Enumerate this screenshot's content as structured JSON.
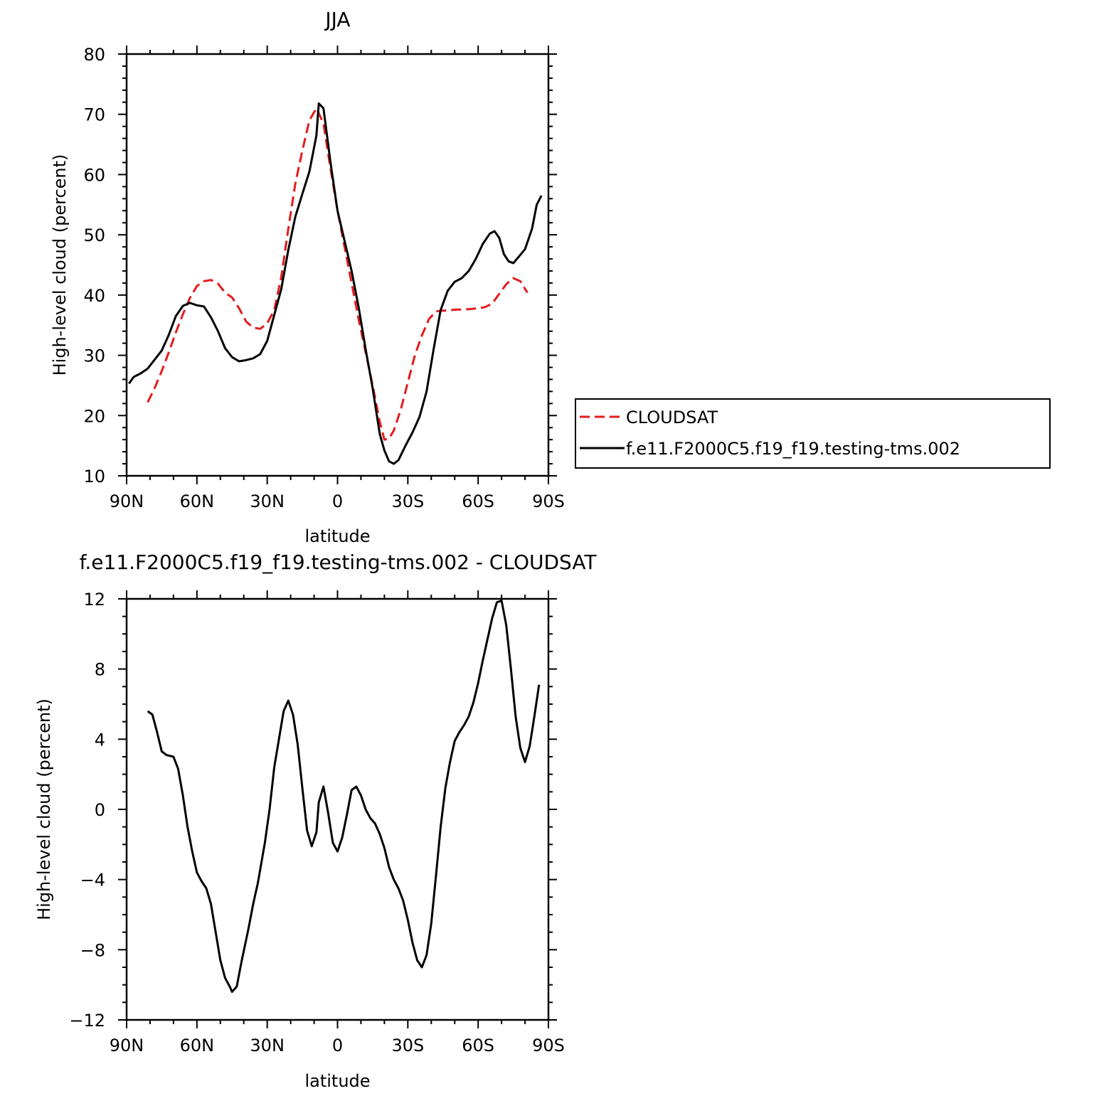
{
  "chart_data": [
    {
      "type": "line",
      "title": "JJA",
      "xlabel": "latitude",
      "ylabel": "High-level cloud (percent)",
      "ylim": [
        10,
        80
      ],
      "xlim": [
        -90,
        90
      ],
      "x_axis_direction": "north-to-south",
      "x_ticks": [
        "90N",
        "60N",
        "30N",
        "0",
        "30S",
        "60S",
        "90S"
      ],
      "y_ticks": [
        "10",
        "20",
        "30",
        "40",
        "50",
        "60",
        "70",
        "80"
      ],
      "legend_position": "right, outside plot",
      "series": [
        {
          "name": "CLOUDSAT",
          "color": "#e41a1c",
          "dash": "dashed",
          "points": [
            [
              -81,
              22.2
            ],
            [
              -78,
              24.6
            ],
            [
              -75,
              27.4
            ],
            [
              -72,
              30.5
            ],
            [
              -69,
              33.8
            ],
            [
              -66,
              36.8
            ],
            [
              -63,
              39.5
            ],
            [
              -60,
              41.5
            ],
            [
              -57,
              42.3
            ],
            [
              -54,
              42.5
            ],
            [
              -51,
              41.9
            ],
            [
              -48,
              40.4
            ],
            [
              -45,
              39.6
            ],
            [
              -42,
              37.8
            ],
            [
              -39,
              35.6
            ],
            [
              -36,
              34.6
            ],
            [
              -33,
              34.4
            ],
            [
              -30,
              35.3
            ],
            [
              -27,
              37.5
            ],
            [
              -24,
              43.0
            ],
            [
              -21,
              51.0
            ],
            [
              -18,
              58.5
            ],
            [
              -15,
              64.0
            ],
            [
              -12,
              69.0
            ],
            [
              -9,
              71.0
            ],
            [
              -6,
              68.5
            ],
            [
              -3,
              61.0
            ],
            [
              0,
              54.0
            ],
            [
              3,
              48.0
            ],
            [
              6,
              42.0
            ],
            [
              9,
              36.0
            ],
            [
              12,
              30.5
            ],
            [
              15,
              25.0
            ],
            [
              18,
              19.0
            ],
            [
              20,
              16.0
            ],
            [
              22,
              16.2
            ],
            [
              24,
              17.5
            ],
            [
              27,
              21.0
            ],
            [
              30,
              25.5
            ],
            [
              33,
              30.0
            ],
            [
              36,
              33.3
            ],
            [
              39,
              36.0
            ],
            [
              42,
              37.3
            ],
            [
              45,
              37.4
            ],
            [
              48,
              37.5
            ],
            [
              51,
              37.6
            ],
            [
              54,
              37.6
            ],
            [
              57,
              37.7
            ],
            [
              60,
              37.8
            ],
            [
              63,
              38.0
            ],
            [
              66,
              38.6
            ],
            [
              69,
              40.2
            ],
            [
              72,
              41.8
            ],
            [
              75,
              42.8
            ],
            [
              78,
              42.3
            ],
            [
              81,
              40.4
            ]
          ]
        },
        {
          "name": "f.e11.F2000C5.f19_f19.testing-tms.002",
          "color": "#000000",
          "dash": "solid",
          "points": [
            [
              -89,
              25.3
            ],
            [
              -87,
              26.4
            ],
            [
              -84,
              27.0
            ],
            [
              -81,
              27.8
            ],
            [
              -78,
              29.3
            ],
            [
              -75,
              30.8
            ],
            [
              -72,
              33.4
            ],
            [
              -69,
              36.5
            ],
            [
              -66,
              38.2
            ],
            [
              -63,
              38.7
            ],
            [
              -60,
              38.3
            ],
            [
              -57,
              38.1
            ],
            [
              -54,
              36.3
            ],
            [
              -51,
              34.0
            ],
            [
              -48,
              31.2
            ],
            [
              -45,
              29.7
            ],
            [
              -42,
              29.0
            ],
            [
              -39,
              29.2
            ],
            [
              -36,
              29.5
            ],
            [
              -33,
              30.2
            ],
            [
              -30,
              32.4
            ],
            [
              -27,
              36.7
            ],
            [
              -24,
              41.0
            ],
            [
              -21,
              47.5
            ],
            [
              -18,
              53.0
            ],
            [
              -15,
              56.8
            ],
            [
              -12,
              60.5
            ],
            [
              -9,
              66.5
            ],
            [
              -8,
              71.8
            ],
            [
              -6,
              71.0
            ],
            [
              -3,
              62.0
            ],
            [
              0,
              54.0
            ],
            [
              3,
              49.0
            ],
            [
              6,
              44.0
            ],
            [
              9,
              38.0
            ],
            [
              12,
              31.0
            ],
            [
              15,
              24.5
            ],
            [
              18,
              17.0
            ],
            [
              20,
              14.2
            ],
            [
              22,
              12.4
            ],
            [
              24,
              12.0
            ],
            [
              26,
              12.6
            ],
            [
              29,
              15.0
            ],
            [
              32,
              17.2
            ],
            [
              35,
              19.8
            ],
            [
              38,
              24.0
            ],
            [
              41,
              31.0
            ],
            [
              44,
              37.5
            ],
            [
              47,
              40.7
            ],
            [
              50,
              42.2
            ],
            [
              53,
              42.8
            ],
            [
              56,
              44.0
            ],
            [
              59,
              46.0
            ],
            [
              62,
              48.5
            ],
            [
              65,
              50.2
            ],
            [
              67,
              50.6
            ],
            [
              69,
              49.5
            ],
            [
              71,
              46.8
            ],
            [
              73,
              45.6
            ],
            [
              75,
              45.3
            ],
            [
              77,
              46.2
            ],
            [
              80,
              47.6
            ],
            [
              83,
              51.0
            ],
            [
              85,
              55.0
            ],
            [
              87,
              56.5
            ]
          ]
        }
      ]
    },
    {
      "type": "line",
      "title": "f.e11.F2000C5.f19_f19.testing-tms.002 - CLOUDSAT",
      "xlabel": "latitude",
      "ylabel": "High-level cloud (percent)",
      "ylim": [
        -12,
        12
      ],
      "xlim": [
        -90,
        90
      ],
      "x_axis_direction": "north-to-south",
      "x_ticks": [
        "90N",
        "60N",
        "30N",
        "0",
        "30S",
        "60S",
        "90S"
      ],
      "y_ticks": [
        "12",
        "8",
        "4",
        "0",
        "−4",
        "−8",
        "−12"
      ],
      "series": [
        {
          "color": "#000000",
          "dash": "solid",
          "points": [
            [
              -81,
              5.6
            ],
            [
              -79,
              5.4
            ],
            [
              -77,
              4.4
            ],
            [
              -75,
              3.3
            ],
            [
              -73,
              3.1
            ],
            [
              -70,
              3.0
            ],
            [
              -68,
              2.3
            ],
            [
              -66,
              0.8
            ],
            [
              -64,
              -1.0
            ],
            [
              -62,
              -2.4
            ],
            [
              -60,
              -3.6
            ],
            [
              -58,
              -4.1
            ],
            [
              -56,
              -4.5
            ],
            [
              -54,
              -5.4
            ],
            [
              -52,
              -7.0
            ],
            [
              -50,
              -8.6
            ],
            [
              -48,
              -9.6
            ],
            [
              -46,
              -10.1
            ],
            [
              -45,
              -10.4
            ],
            [
              -43,
              -10.1
            ],
            [
              -41,
              -8.7
            ],
            [
              -38,
              -6.8
            ],
            [
              -36,
              -5.4
            ],
            [
              -34,
              -4.2
            ],
            [
              -31,
              -1.9
            ],
            [
              -29,
              0.0
            ],
            [
              -27,
              2.4
            ],
            [
              -25,
              4.0
            ],
            [
              -23,
              5.6
            ],
            [
              -21,
              6.2
            ],
            [
              -19,
              5.4
            ],
            [
              -17,
              3.7
            ],
            [
              -15,
              1.2
            ],
            [
              -13,
              -1.2
            ],
            [
              -11,
              -2.1
            ],
            [
              -9,
              -1.3
            ],
            [
              -8,
              0.4
            ],
            [
              -6,
              1.3
            ],
            [
              -4,
              -0.2
            ],
            [
              -2,
              -1.9
            ],
            [
              0,
              -2.4
            ],
            [
              2,
              -1.6
            ],
            [
              4,
              -0.3
            ],
            [
              6,
              1.1
            ],
            [
              8,
              1.3
            ],
            [
              10,
              0.8
            ],
            [
              12,
              0.0
            ],
            [
              14,
              -0.5
            ],
            [
              16,
              -0.8
            ],
            [
              18,
              -1.4
            ],
            [
              20,
              -2.2
            ],
            [
              22,
              -3.3
            ],
            [
              24,
              -4.0
            ],
            [
              26,
              -4.5
            ],
            [
              28,
              -5.2
            ],
            [
              30,
              -6.3
            ],
            [
              32,
              -7.6
            ],
            [
              34,
              -8.6
            ],
            [
              36,
              -9.0
            ],
            [
              38,
              -8.3
            ],
            [
              40,
              -6.5
            ],
            [
              42,
              -3.8
            ],
            [
              44,
              -1.0
            ],
            [
              46,
              1.2
            ],
            [
              48,
              2.7
            ],
            [
              50,
              3.9
            ],
            [
              52,
              4.4
            ],
            [
              54,
              4.8
            ],
            [
              56,
              5.3
            ],
            [
              58,
              6.1
            ],
            [
              60,
              7.2
            ],
            [
              62,
              8.5
            ],
            [
              64,
              9.7
            ],
            [
              66,
              10.9
            ],
            [
              68,
              11.8
            ],
            [
              70,
              11.9
            ],
            [
              72,
              10.5
            ],
            [
              74,
              8.0
            ],
            [
              76,
              5.3
            ],
            [
              78,
              3.5
            ],
            [
              80,
              2.7
            ],
            [
              82,
              3.6
            ],
            [
              84,
              5.3
            ],
            [
              86,
              7.1
            ]
          ]
        }
      ]
    }
  ]
}
